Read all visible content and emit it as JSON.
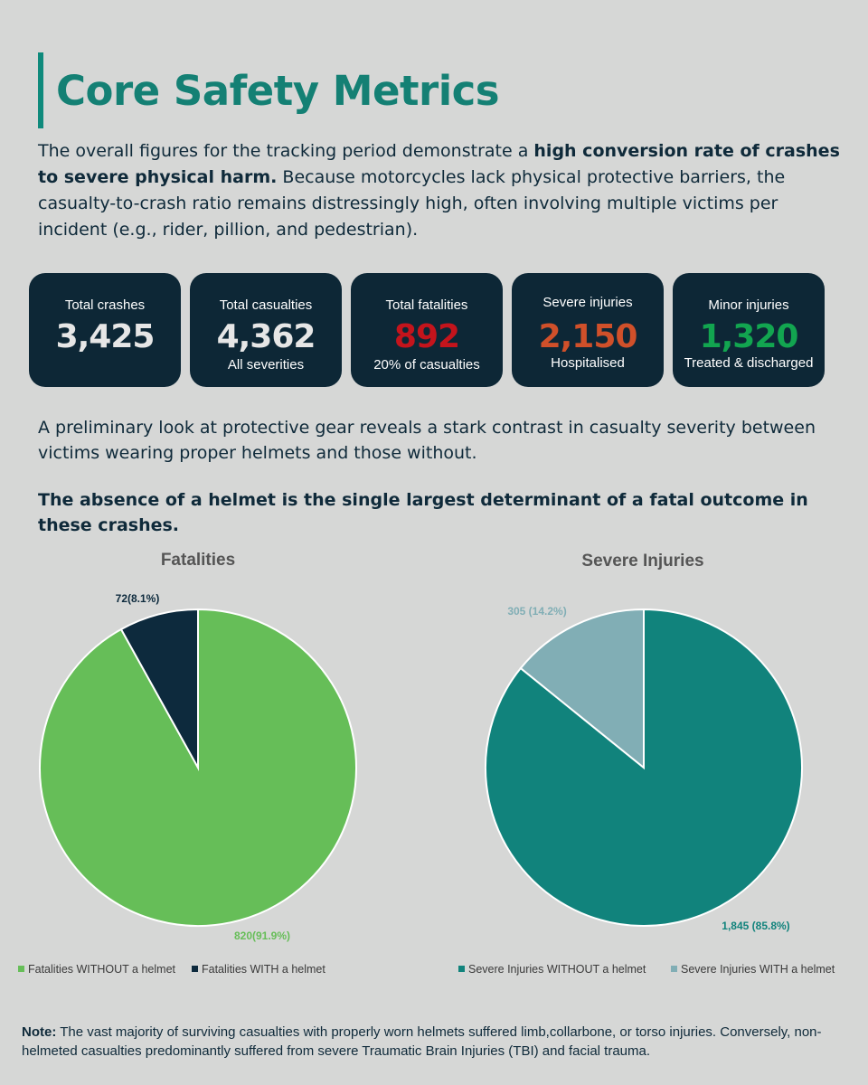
{
  "header": {
    "title": "Core Safety Metrics"
  },
  "intro": {
    "text_before": "The overall figures for the tracking period demonstrate a ",
    "text_bold": "high conversion rate of crashes to severe physical harm.",
    "text_after": " Because motorcycles lack physical protective barriers, the casualty-to-crash ratio remains distressingly high, often involving multiple victims per incident (e.g., rider, pillion, and pedestrian)."
  },
  "cards": [
    {
      "label": "Total crashes",
      "value": "3,425",
      "sub": "",
      "color": "#e6e6e6"
    },
    {
      "label": "Total casualties",
      "value": "4,362",
      "sub": "All severities",
      "color": "#e6e6e6"
    },
    {
      "label": "Total fatalities",
      "value": "892",
      "sub": "20% of casualties",
      "color": "#c4141c"
    },
    {
      "label": "Severe injuries",
      "value": "2,150",
      "sub": "Hospitalised",
      "color": "#d0502a"
    },
    {
      "label": "Minor injuries",
      "value": "1,320",
      "sub": "Treated & discharged",
      "color": "#12a550"
    }
  ],
  "paragraph2": "A preliminary look at protective gear reveals a stark contrast in casualty severity between victims wearing proper helmets and those without.",
  "paragraph3": "The absence of a helmet is the single largest determinant of a fatal outcome in these crashes.",
  "chart_data": [
    {
      "type": "pie",
      "title": "Fatalities",
      "slices": [
        {
          "name": "Fatalities WITHOUT a helmet",
          "value": 820,
          "percent": 91.9,
          "label": "820(91.9%)",
          "color": "#66be58",
          "label_color": "#66be58"
        },
        {
          "name": "Fatalities WITH a helmet",
          "value": 72,
          "percent": 8.1,
          "label": "72(8.1%)",
          "color": "#0d2a3d",
          "label_color": "#0d2a3d"
        }
      ],
      "legend_position": "bottom"
    },
    {
      "type": "pie",
      "title": "Severe Injuries",
      "slices": [
        {
          "name": "Severe Injuries WITHOUT a helmet",
          "value": 1845,
          "percent": 85.8,
          "label": "1,845 (85.8%)",
          "color": "#11837c",
          "label_color": "#11837c"
        },
        {
          "name": "Severe Injuries WITH a helmet",
          "value": 305,
          "percent": 14.2,
          "label": "305 (14.2%)",
          "color": "#81aeb5",
          "label_color": "#81aeb5"
        }
      ],
      "legend_position": "bottom"
    }
  ],
  "note": {
    "label": "Note:",
    "text": " The vast majority of surviving casualties with properly worn helmets suffered limb,collarbone, or torso injuries. Conversely, non-helmeted casualties predominantly suffered from severe Traumatic Brain Injuries (TBI) and facial trauma."
  }
}
